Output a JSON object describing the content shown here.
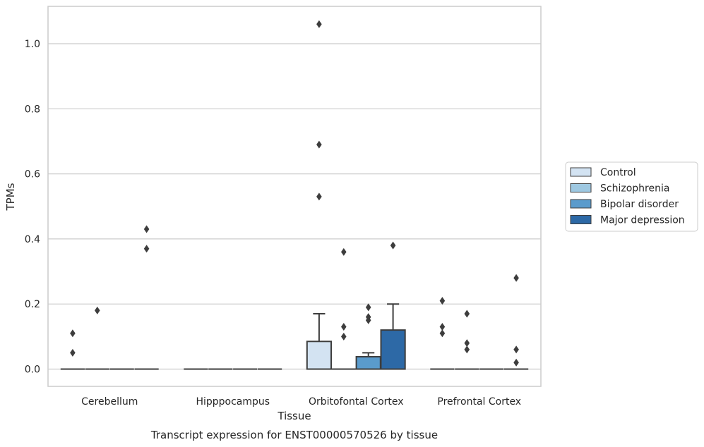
{
  "chart_data": {
    "type": "box",
    "title": "",
    "caption": "Transcript expression for ENST00000570526 by tissue",
    "xlabel": "Tissue",
    "ylabel": "TPMs",
    "ylim": [
      -0.05,
      1.12
    ],
    "yticks": [
      0.0,
      0.2,
      0.4,
      0.6,
      0.8,
      1.0
    ],
    "ytick_labels": [
      "0.0",
      "0.2",
      "0.4",
      "0.6",
      "0.8",
      "1.0"
    ],
    "grid": true,
    "legend_position": "right",
    "categories": [
      "Cerebellum",
      "Hipppocampus",
      "Orbitofontal Cortex",
      "Prefrontal Cortex"
    ],
    "series": [
      {
        "name": "Control",
        "color": "#d3e3f2",
        "boxes": [
          {
            "q1": 0,
            "median": 0,
            "q3": 0,
            "whisker_low": 0,
            "whisker_high": 0,
            "outliers": [
              0.11,
              0.05
            ]
          },
          {
            "q1": 0,
            "median": 0,
            "q3": 0,
            "whisker_low": 0,
            "whisker_high": 0,
            "outliers": []
          },
          {
            "q1": 0,
            "median": 0,
            "q3": 0.085,
            "whisker_low": 0,
            "whisker_high": 0.17,
            "outliers": [
              1.06,
              0.69,
              0.53
            ]
          },
          {
            "q1": 0,
            "median": 0,
            "q3": 0,
            "whisker_low": 0,
            "whisker_high": 0,
            "outliers": [
              0.21,
              0.13,
              0.11
            ]
          }
        ]
      },
      {
        "name": "Schizophrenia",
        "color": "#9ec8e1",
        "boxes": [
          {
            "q1": 0,
            "median": 0,
            "q3": 0,
            "whisker_low": 0,
            "whisker_high": 0,
            "outliers": [
              0.18
            ]
          },
          {
            "q1": 0,
            "median": 0,
            "q3": 0,
            "whisker_low": 0,
            "whisker_high": 0,
            "outliers": []
          },
          {
            "q1": 0,
            "median": 0,
            "q3": 0,
            "whisker_low": 0,
            "whisker_high": 0,
            "outliers": [
              0.36,
              0.13,
              0.1
            ]
          },
          {
            "q1": 0,
            "median": 0,
            "q3": 0,
            "whisker_low": 0,
            "whisker_high": 0,
            "outliers": [
              0.17,
              0.08,
              0.06
            ]
          }
        ]
      },
      {
        "name": "Bipolar disorder",
        "color": "#5a9bcc",
        "boxes": [
          {
            "q1": 0,
            "median": 0,
            "q3": 0,
            "whisker_low": 0,
            "whisker_high": 0,
            "outliers": []
          },
          {
            "q1": 0,
            "median": 0,
            "q3": 0,
            "whisker_low": 0,
            "whisker_high": 0,
            "outliers": []
          },
          {
            "q1": 0,
            "median": 0,
            "q3": 0.038,
            "whisker_low": 0,
            "whisker_high": 0.05,
            "outliers": [
              0.19,
              0.16,
              0.15
            ]
          },
          {
            "q1": 0,
            "median": 0,
            "q3": 0,
            "whisker_low": 0,
            "whisker_high": 0,
            "outliers": []
          }
        ]
      },
      {
        "name": "Major depression",
        "color": "#2d69a6",
        "boxes": [
          {
            "q1": 0,
            "median": 0,
            "q3": 0,
            "whisker_low": 0,
            "whisker_high": 0,
            "outliers": [
              0.43,
              0.37
            ]
          },
          {
            "q1": 0,
            "median": 0,
            "q3": 0,
            "whisker_low": 0,
            "whisker_high": 0,
            "outliers": []
          },
          {
            "q1": 0,
            "median": 0,
            "q3": 0.12,
            "whisker_low": 0,
            "whisker_high": 0.2,
            "outliers": [
              0.38
            ]
          },
          {
            "q1": 0,
            "median": 0,
            "q3": 0,
            "whisker_low": 0,
            "whisker_high": 0,
            "outliers": [
              0.28,
              0.06,
              0.02
            ]
          }
        ]
      }
    ]
  }
}
